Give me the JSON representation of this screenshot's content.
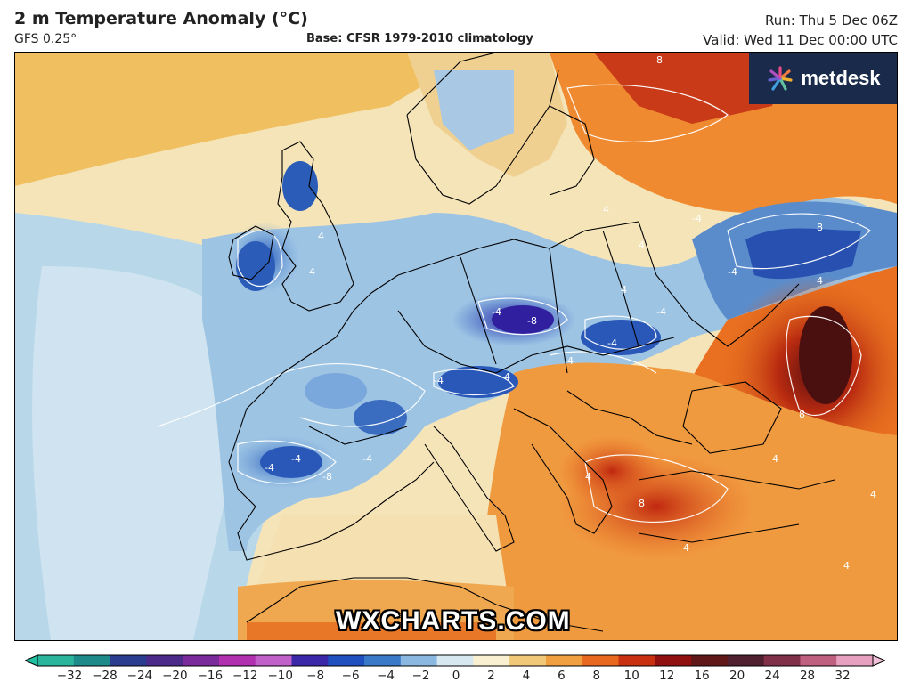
{
  "header": {
    "title": "2 m Temperature Anomaly (°C)",
    "model": "GFS 0.25°",
    "base": "Base: CFSR 1979-2010 climatology",
    "run": "Run: Thu 5 Dec 06Z",
    "valid": "Valid: Wed 11 Dec 00:00 UTC"
  },
  "branding": {
    "logo_text": "metdesk",
    "watermark": "WXCHARTS.COM"
  },
  "map": {
    "contour_labels": [
      "8",
      "4",
      "4",
      "4",
      "4",
      "4",
      "8",
      "4",
      "8",
      "-8",
      "-4",
      "-4",
      "-4",
      "-4",
      "-4",
      "-4",
      "-4",
      "-4",
      "-8",
      "-4",
      "-4",
      "4",
      "8",
      "4",
      "4",
      "4",
      "4",
      "4"
    ]
  },
  "colorbar": {
    "ticks": [
      "−32",
      "−28",
      "−24",
      "−20",
      "−16",
      "−12",
      "−10",
      "−8",
      "−6",
      "−4",
      "−2",
      "0",
      "2",
      "4",
      "6",
      "8",
      "10",
      "12",
      "16",
      "20",
      "24",
      "28",
      "32"
    ],
    "colors": [
      "#2ab59c",
      "#1f8a8a",
      "#2b3d8f",
      "#4b2a8a",
      "#7a2a9a",
      "#b030b0",
      "#c060c8",
      "#3a28a8",
      "#2050c0",
      "#3a78c8",
      "#8ab8e0",
      "#d8e8f0",
      "#f8f0d0",
      "#f0c878",
      "#f0a040",
      "#e86820",
      "#c83010",
      "#901010",
      "#601818",
      "#502030",
      "#803048",
      "#c06080",
      "#e8a0c0"
    ]
  }
}
